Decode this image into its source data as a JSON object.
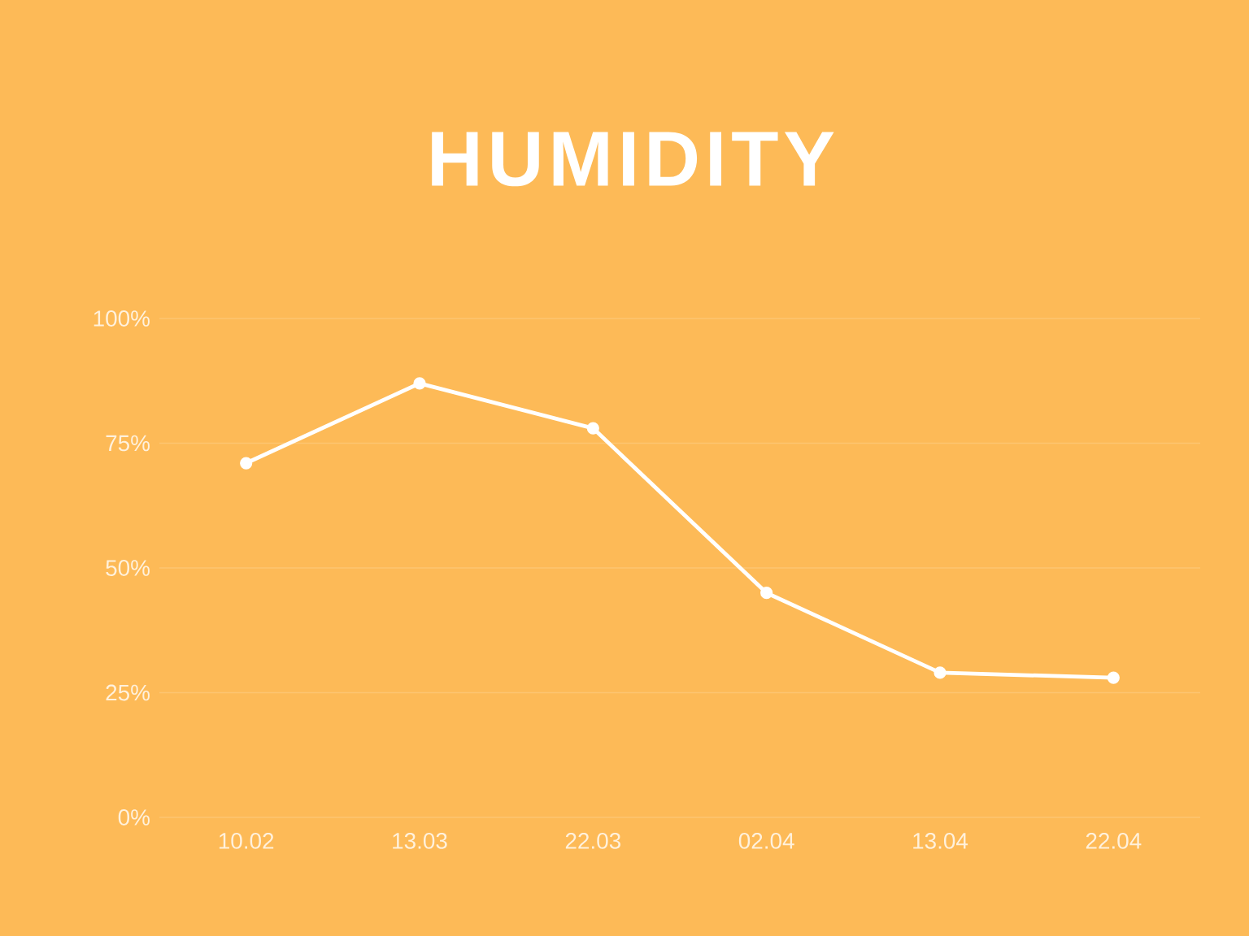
{
  "chart_data": {
    "type": "line",
    "title": "HUMIDITY",
    "categories": [
      "10.02",
      "13.03",
      "22.03",
      "02.04",
      "13.04",
      "22.04"
    ],
    "series": [
      {
        "color": "#ffffff",
        "values": [
          71,
          87,
          78,
          45,
          29,
          28
        ]
      }
    ],
    "ylim": [
      0,
      100
    ],
    "yticks": [
      {
        "value": 0,
        "label": "0%"
      },
      {
        "value": 25,
        "label": "25%"
      },
      {
        "value": 50,
        "label": "50%"
      },
      {
        "value": 75,
        "label": "75%"
      },
      {
        "value": 100,
        "label": "100%"
      }
    ],
    "grid": "y",
    "marker": "circle",
    "line_style": "solid"
  }
}
